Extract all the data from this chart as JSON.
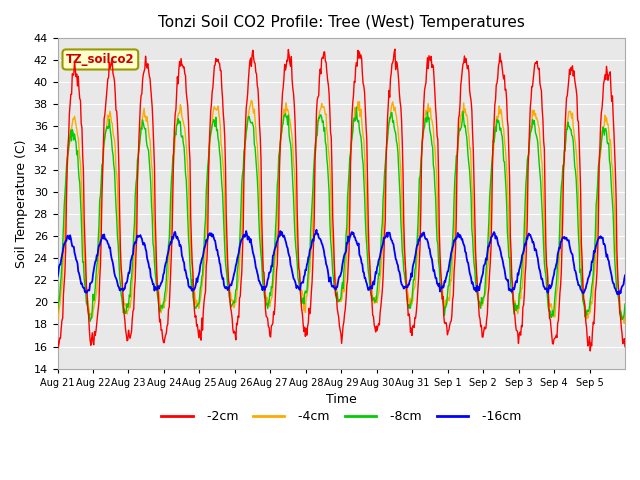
{
  "title": "Tonzi Soil CO2 Profile: Tree (West) Temperatures",
  "xlabel": "Time",
  "ylabel": "Soil Temperature (C)",
  "ylim": [
    14,
    44
  ],
  "yticks": [
    14,
    16,
    18,
    20,
    22,
    24,
    26,
    28,
    30,
    32,
    34,
    36,
    38,
    40,
    42,
    44
  ],
  "colors": {
    "-2cm": "#ff0000",
    "-4cm": "#ffaa00",
    "-8cm": "#00cc00",
    "-16cm": "#0000ff"
  },
  "legend_label": "TZ_soilco2",
  "legend_box_facecolor": "#ffffcc",
  "legend_box_edge": "#999900",
  "plot_bg_color": "#e8e8e8",
  "n_days": 16,
  "samples_per_day": 48,
  "amp_2": 12.5,
  "base_2": 29.0,
  "amp_4": 9.0,
  "base_4": 28.0,
  "amp_8": 8.5,
  "base_8": 27.5,
  "amp_16": 2.5,
  "base_16": 23.5
}
